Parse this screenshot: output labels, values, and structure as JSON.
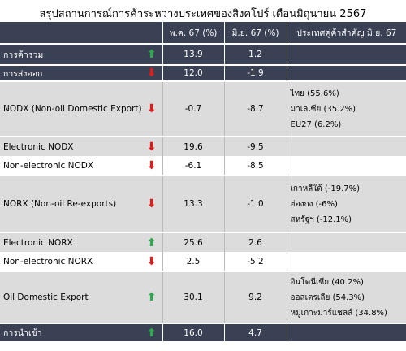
{
  "title": "สรุปสถานการณ์การค้าระหว่างประเทศของสิงคโปร์ เดือนมิถุนายน 2567",
  "headers": [
    "",
    "พ.ค. 67 (%)",
    "มิ.ย. 67 (%)",
    "ประเทศคู่ค้าสำคัญ มิ.ย. 67"
  ],
  "rows": [
    {
      "label": "การค้ารวม",
      "trend": "up",
      "may": "13.9",
      "jun": "1.2",
      "partners": []
    },
    {
      "label": "การส่งออก",
      "trend": "down",
      "may": "12.0",
      "jun": "-1.9",
      "partners": []
    },
    {
      "label": "NODX (Non-oil Domestic Export)",
      "trend": "down",
      "may": "-0.7",
      "jun": "-8.7",
      "partners": [
        "ไทย (55.6%)",
        "มาเลเซีย (35.2%)",
        "EU27 (6.2%)"
      ]
    },
    {
      "label": "Electronic NODX",
      "trend": "down",
      "may": "19.6",
      "jun": "-9.5",
      "partners": []
    },
    {
      "label": "Non-electronic NODX",
      "trend": "down",
      "may": "-6.1",
      "jun": "-8.5",
      "partners": []
    },
    {
      "label": "NORX (Non-oil Re-exports)",
      "trend": "down",
      "may": "13.3",
      "jun": "-1.0",
      "partners": [
        "เกาหลีใต้ (-19.7%)",
        "ฮ่องกง (-6%)",
        "สหรัฐฯ (-12.1%)"
      ]
    },
    {
      "label": "Electronic NORX",
      "trend": "up",
      "may": "25.6",
      "jun": "2.6",
      "partners": []
    },
    {
      "label": "Non-electronic NORX",
      "trend": "down",
      "may": "2.5",
      "jun": "-5.2",
      "partners": []
    },
    {
      "label": "Oil Domestic Export",
      "trend": "up",
      "may": "30.1",
      "jun": "9.2",
      "partners": [
        "อินโดนีเซีย (40.2%)",
        "ออสเตรเลีย (54.3%)",
        "หมู่เกาะมาร์แชลล์ (34.8%)"
      ]
    },
    {
      "label": "การนำเข้า",
      "trend": "up",
      "may": "16.0",
      "jun": "4.7",
      "partners": []
    }
  ],
  "colors": {
    "header_bg": "#3b4154",
    "light_row": "#dcdcdc",
    "up_arrow": "#2fa84f",
    "down_arrow": "#e01b1b"
  }
}
